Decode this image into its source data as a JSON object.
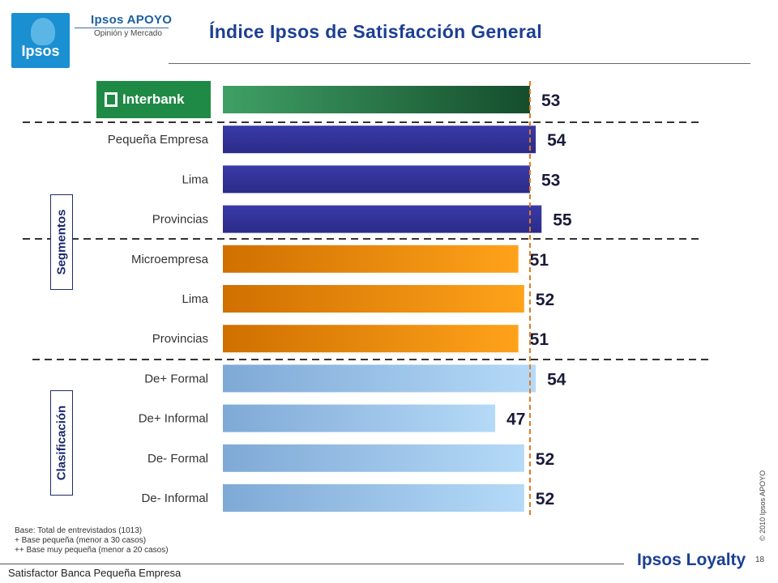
{
  "header": {
    "logo_text": "Ipsos",
    "apoyo_title": "Ipsos APOYO",
    "apoyo_subtitle": "Opinión y Mercado",
    "page_title": "Índice Ipsos de Satisfacción General"
  },
  "sections": {
    "segmentos": "Segmentos",
    "clasificacion": "Clasificación"
  },
  "chart_data": {
    "type": "bar",
    "orientation": "horizontal",
    "categories": [
      "Interbank",
      "Pequeña Empresa",
      "Lima",
      "Provincias",
      "Microempresa",
      "Lima",
      "Provincias",
      "De+ Formal",
      "De+ Informal",
      "De- Formal",
      "De- Informal"
    ],
    "values": [
      53,
      54,
      53,
      55,
      51,
      52,
      51,
      54,
      47,
      52,
      52
    ],
    "groups": [
      "total",
      "pequena",
      "pequena",
      "pequena",
      "micro",
      "micro",
      "micro",
      "clasificacion",
      "clasificacion",
      "clasificacion",
      "clasificacion"
    ],
    "reference_line": 53,
    "colors": {
      "total": "#2a7a4a",
      "pequena": "#333399",
      "micro": "#f08c00",
      "clasificacion": "#9fc8ef",
      "reference": "#e07b20"
    },
    "data_labels": [
      "53",
      "54",
      "53",
      "55",
      "51",
      "52",
      "51",
      "54",
      "47",
      "52",
      "52"
    ]
  },
  "notes": {
    "line1": "Base: Total de entrevistados (1013)",
    "line2": "+   Base pequeña (menor a 30 casos)",
    "line3": "++ Base muy pequeña (menor a 20 casos)"
  },
  "footer": {
    "left_text": "Satisfactor Banca Pequeña Empresa",
    "brand": "Ipsos Loyalty",
    "page_number": "18",
    "copyright": "© 2010 Ipsos APOYO"
  }
}
